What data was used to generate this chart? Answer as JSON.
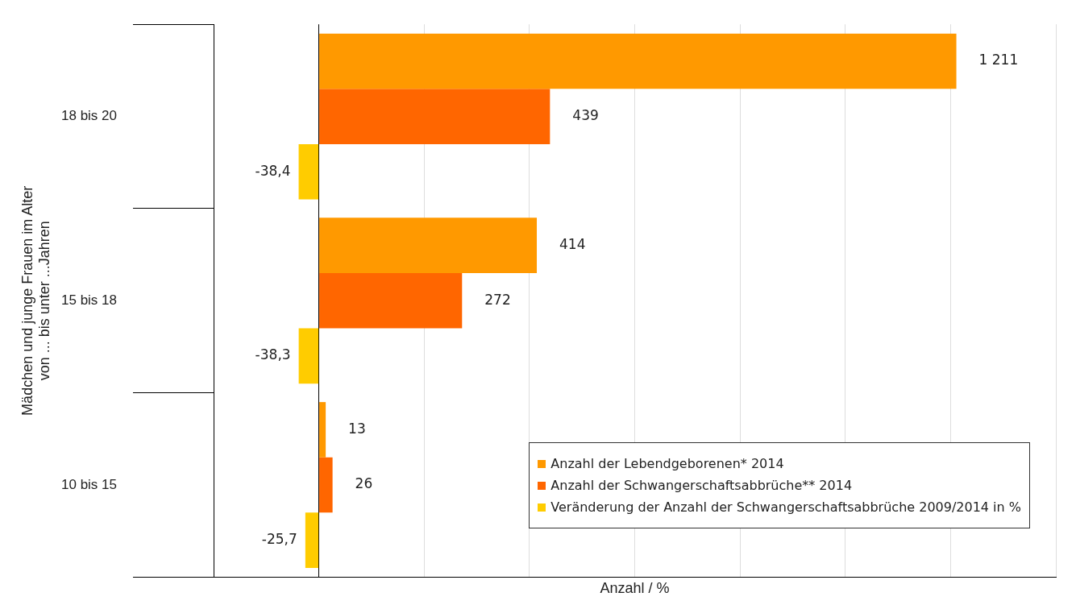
{
  "chart_data": {
    "type": "bar",
    "orientation": "horizontal",
    "categories": [
      "18 bis 20",
      "15 bis 18",
      "10 bis 15"
    ],
    "series": [
      {
        "name": "Anzahl der Lebendgeborenen* 2014",
        "color": "#ff9900",
        "values": [
          1211,
          414,
          13
        ],
        "value_labels": [
          "1 211",
          "414",
          "13"
        ]
      },
      {
        "name": "Anzahl der Schwangerschaftsabbrüche** 2014",
        "color": "#ff6600",
        "values": [
          439,
          272,
          26
        ],
        "value_labels": [
          "439",
          "272",
          "26"
        ]
      },
      {
        "name": "Veränderung der Anzahl der Schwangerschaftsabbrüche 2009/2014 in %",
        "color": "#ffcc00",
        "values": [
          -38.4,
          -38.3,
          -25.7
        ],
        "value_labels": [
          "-38,4",
          "-38,3",
          "-25,7"
        ]
      }
    ],
    "xlim": [
      -200,
      1400
    ],
    "xticks": [
      {
        "value": -200,
        "label": null
      },
      {
        "value": 0,
        "label": null
      },
      {
        "value": 200,
        "label": null
      },
      {
        "value": 400,
        "label": null
      },
      {
        "value": 600,
        "label": null
      },
      {
        "value": 800,
        "label": null
      },
      {
        "value": 1000,
        "label": null
      },
      {
        "value": 1200,
        "label": null
      },
      {
        "value": 1400,
        "label": null
      }
    ],
    "tick_labels": "y",
    "xlabel": "Anzahl / %",
    "ylabel": "Mädchen und junge Frauen im Alter\nvon ... bis unter ...Jahren",
    "grid": "x",
    "legend": "bottom right"
  }
}
